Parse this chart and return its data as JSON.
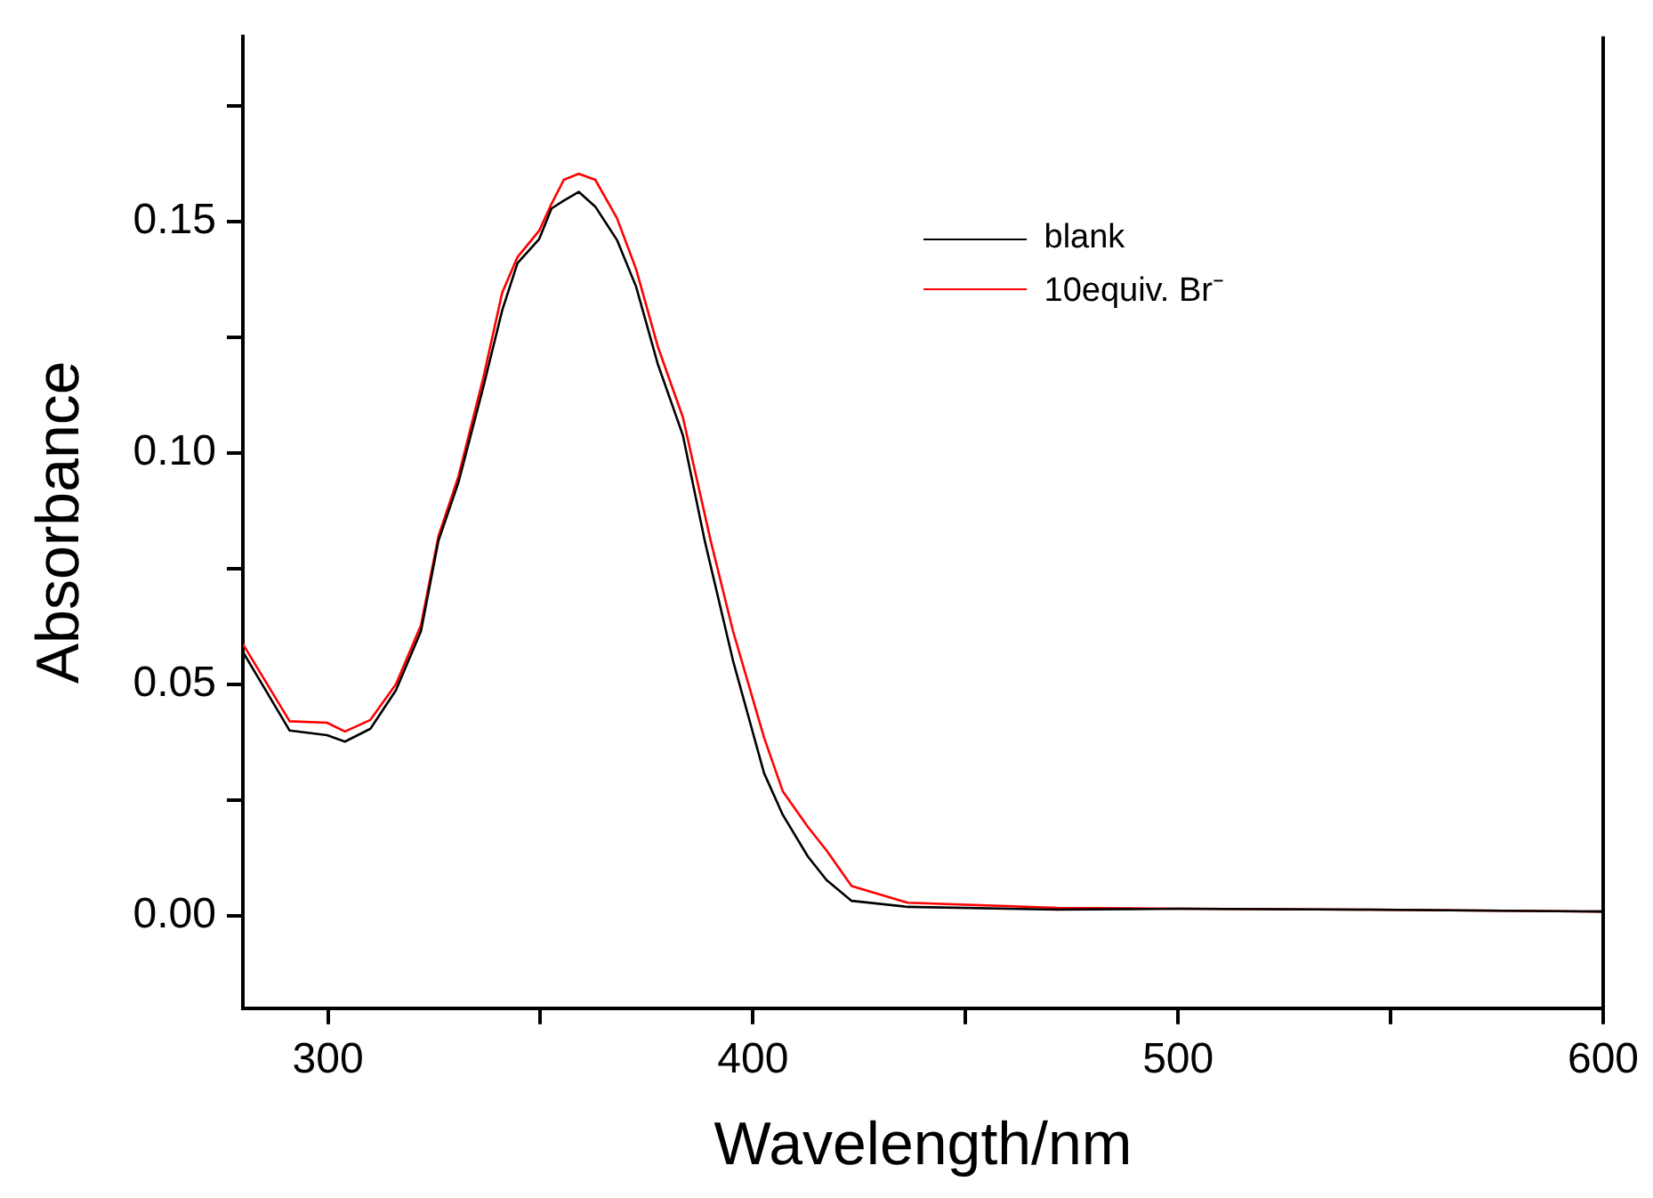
{
  "chart_data": {
    "type": "line",
    "xlabel": "Wavelength/nm",
    "ylabel": "Absorbance",
    "xlim": [
      280,
      600
    ],
    "ylim": [
      -0.02,
      0.19
    ],
    "xticks": [
      300,
      {
        "value": 350,
        "label": null
      },
      400,
      {
        "value": 450,
        "label": null
      },
      500,
      {
        "value": 550,
        "label": null
      },
      600
    ],
    "yticks": [
      "0.00",
      {
        "value": 0.025,
        "label": null
      },
      {
        "value": 0.05,
        "label": "0.05"
      },
      {
        "value": 0.075,
        "label": null
      },
      {
        "value": 0.1,
        "label": "0.10"
      },
      {
        "value": 0.125,
        "label": null
      },
      {
        "value": 0.15,
        "label": "0.15"
      },
      {
        "value": 0.175,
        "label": null
      }
    ],
    "legend": "top right",
    "series": [
      {
        "name": "blank",
        "color": "#000000",
        "x": [
          280,
          291,
          299.8,
          304,
          310,
          316,
          321.9,
          326,
          330.7,
          336.5,
          341,
          344.6,
          349.7,
          352.6,
          355.5,
          359,
          362.9,
          368,
          372.5,
          377.6,
          383.5,
          388.7,
          395.3,
          402.6,
          407,
          412.9,
          417.3,
          423.2,
          436.4,
          471.6,
          501,
          545,
          600
        ],
        "values": [
          0.057,
          0.04,
          0.039,
          0.0376,
          0.0404,
          0.0487,
          0.0615,
          0.081,
          0.0936,
          0.114,
          0.1308,
          0.141,
          0.1462,
          0.1528,
          0.1545,
          0.1564,
          0.1532,
          0.146,
          0.1359,
          0.1192,
          0.1038,
          0.0808,
          0.0551,
          0.0308,
          0.0218,
          0.0128,
          0.0077,
          0.0032,
          0.0019,
          0.0013,
          0.0015,
          0.0013,
          0.0009
        ]
      },
      {
        "name": "10equiv. Br⁻",
        "color": "#ff0000",
        "x": [
          280,
          291,
          299.8,
          304,
          310,
          316,
          321.9,
          326,
          330.7,
          336.5,
          341,
          344.6,
          349.7,
          352.6,
          355.5,
          359,
          362.9,
          368,
          372.5,
          377.6,
          383.5,
          390.1,
          395.3,
          402.6,
          407,
          412.9,
          417.3,
          423.2,
          436.4,
          471.6,
          501,
          545,
          600
        ],
        "values": [
          0.0587,
          0.042,
          0.0417,
          0.0398,
          0.0423,
          0.05,
          0.0628,
          0.082,
          0.0949,
          0.116,
          0.1346,
          0.1423,
          0.148,
          0.1538,
          0.159,
          0.1603,
          0.159,
          0.1507,
          0.1397,
          0.123,
          0.1077,
          0.0808,
          0.0615,
          0.0385,
          0.0269,
          0.0192,
          0.0141,
          0.0064,
          0.0028,
          0.0017,
          0.0015,
          0.0013,
          0.0009
        ]
      }
    ]
  }
}
